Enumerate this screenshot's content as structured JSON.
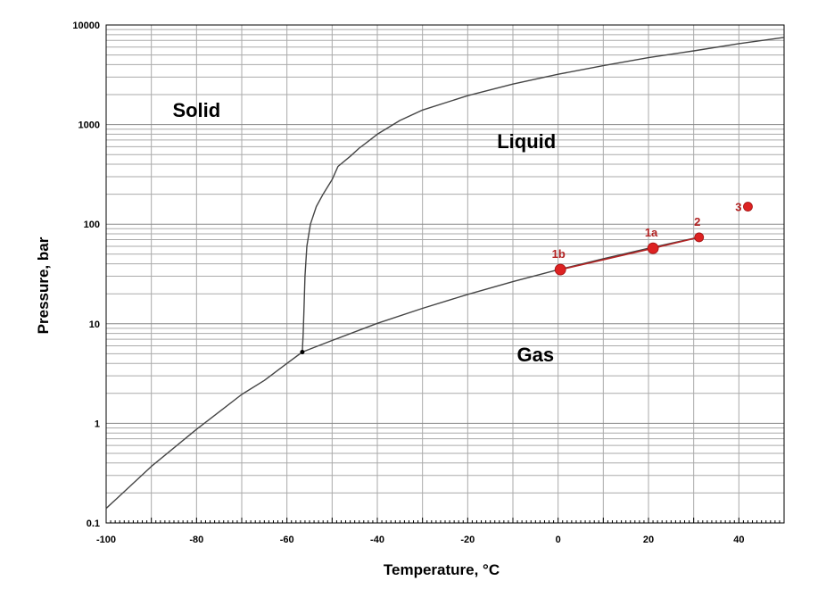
{
  "chart_data": {
    "type": "line",
    "xlabel": "Temperature, °C",
    "ylabel": "Pressure, bar",
    "xlim": [
      -100,
      50
    ],
    "ylim": [
      0.1,
      10000
    ],
    "y_scale": "log",
    "grid": true,
    "x_ticks": [
      -100,
      -80,
      -60,
      -40,
      -20,
      0,
      20,
      40
    ],
    "y_ticks": [
      0.1,
      1,
      10,
      100,
      1000,
      10000
    ],
    "x_tick_labels": [
      "-100",
      "-80",
      "-60",
      "-40",
      "-20",
      "0",
      "20",
      "40"
    ],
    "y_tick_labels": [
      "0.1",
      "1",
      "10",
      "100",
      "1000",
      "10000"
    ],
    "curves": [
      {
        "x": [
          -100,
          -90,
          -80,
          -70,
          -65,
          -60,
          -56.6
        ],
        "y": [
          0.14,
          0.37,
          0.87,
          1.95,
          2.7,
          4.0,
          5.2
        ]
      },
      {
        "x": [
          -56.6,
          -50,
          -40,
          -30,
          -20,
          -10,
          0,
          10,
          20,
          31
        ],
        "y": [
          5.2,
          6.8,
          10.1,
          14.3,
          19.7,
          26.5,
          34.9,
          45.0,
          57.3,
          73.8
        ]
      },
      {
        "x": [
          -56.6,
          -56.4,
          -56.2,
          -56.0,
          -55.6,
          -54.8,
          -53.5,
          -52,
          -50,
          -48.7,
          -46,
          -44,
          -42,
          -40,
          -35,
          -30,
          -20,
          -10,
          0,
          10,
          20,
          30,
          40,
          50
        ],
        "y": [
          5.2,
          8,
          15,
          30,
          60,
          100,
          150,
          200,
          280,
          380,
          480,
          580,
          680,
          800,
          1100,
          1400,
          1950,
          2550,
          3200,
          3900,
          4700,
          5500,
          6500,
          7500
        ]
      }
    ],
    "process_line": {
      "x": [
        0.5,
        21,
        31.2
      ],
      "y": [
        35,
        57.3,
        73.8
      ]
    },
    "points": [
      {
        "label": "1b",
        "x": 0.5,
        "y": 35,
        "size": "large"
      },
      {
        "label": "1a",
        "x": 21,
        "y": 57.3,
        "size": "large"
      },
      {
        "label": "2",
        "x": 31.2,
        "y": 73.8,
        "size": "small"
      },
      {
        "label": "3",
        "x": 42,
        "y": 150,
        "size": "small"
      }
    ],
    "triple_point": {
      "x": -56.6,
      "y": 5.2
    },
    "regions": [
      {
        "label": "Solid",
        "x": -80,
        "y": 1200
      },
      {
        "label": "Liquid",
        "x": -7,
        "y": 580
      },
      {
        "label": "Gas",
        "x": -5,
        "y": 4.2
      }
    ],
    "colors": {
      "curve": "#444444",
      "grid": "#aaaaaa",
      "point": "#dd2222",
      "point_label": "#b22222",
      "process_line": "#b22222"
    }
  }
}
